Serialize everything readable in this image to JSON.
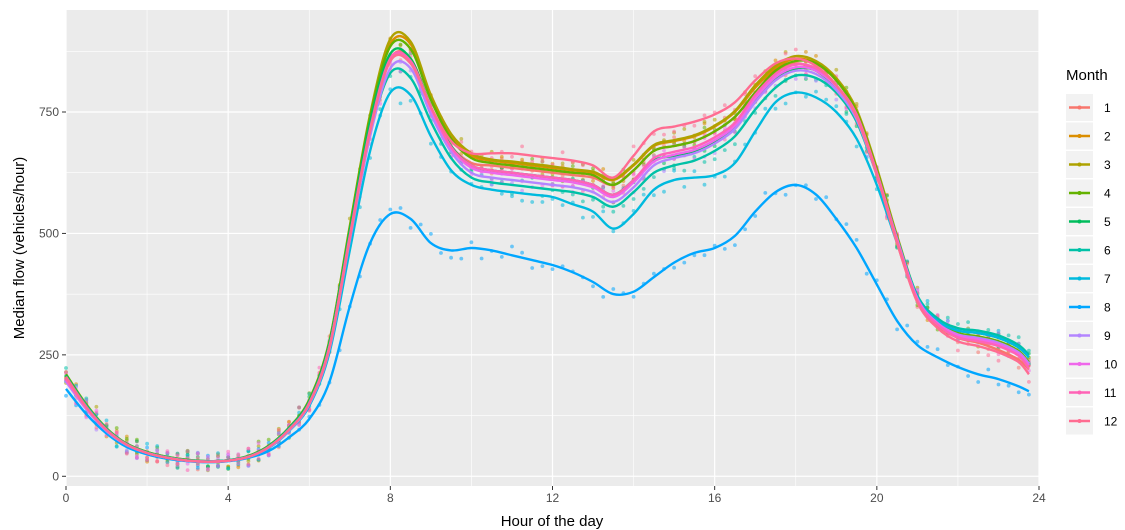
{
  "chart_data": {
    "type": "line",
    "title": "",
    "xlabel": "Hour of the day",
    "ylabel": "Median flow (vehicles/hour)",
    "xlim": [
      0,
      24
    ],
    "ylim": [
      -20,
      960
    ],
    "x_ticks": [
      0,
      4,
      8,
      12,
      16,
      20,
      24
    ],
    "y_ticks": [
      0,
      250,
      500,
      750
    ],
    "grid": true,
    "legend_title": "Month",
    "legend_position": "right",
    "x": [
      0,
      0.5,
      1,
      1.5,
      2,
      2.5,
      3,
      3.5,
      4,
      4.5,
      5,
      5.5,
      6,
      6.5,
      7,
      7.5,
      8,
      8.5,
      9,
      9.5,
      10,
      10.5,
      11,
      11.5,
      12,
      12.5,
      13,
      13.5,
      14,
      14.5,
      15,
      15.5,
      16,
      16.5,
      17,
      17.5,
      18,
      18.5,
      19,
      19.5,
      20,
      20.5,
      21,
      21.5,
      22,
      22.5,
      23,
      23.5,
      23.75
    ],
    "series": [
      {
        "name": "1",
        "color": "#F8766D",
        "values": [
          200,
          140,
          95,
          65,
          48,
          38,
          32,
          30,
          32,
          40,
          60,
          95,
          150,
          270,
          500,
          720,
          860,
          860,
          760,
          680,
          645,
          640,
          635,
          630,
          625,
          620,
          615,
          600,
          630,
          670,
          680,
          690,
          710,
          740,
          790,
          830,
          850,
          835,
          800,
          740,
          620,
          480,
          360,
          310,
          285,
          275,
          260,
          240,
          220
        ]
      },
      {
        "name": "2",
        "color": "#DB8E00",
        "values": [
          205,
          145,
          97,
          66,
          49,
          39,
          33,
          31,
          33,
          41,
          62,
          98,
          155,
          275,
          510,
          740,
          890,
          890,
          780,
          700,
          660,
          650,
          645,
          640,
          635,
          630,
          625,
          610,
          640,
          680,
          690,
          700,
          720,
          750,
          800,
          840,
          860,
          850,
          815,
          750,
          630,
          490,
          365,
          312,
          288,
          280,
          270,
          250,
          225
        ]
      },
      {
        "name": "3",
        "color": "#AEA200",
        "values": [
          210,
          148,
          99,
          67,
          50,
          40,
          34,
          31,
          33,
          42,
          63,
          100,
          158,
          280,
          515,
          745,
          900,
          895,
          785,
          705,
          665,
          652,
          648,
          643,
          638,
          632,
          627,
          612,
          642,
          682,
          692,
          702,
          722,
          752,
          805,
          845,
          865,
          855,
          820,
          755,
          635,
          495,
          370,
          315,
          290,
          282,
          272,
          252,
          228
        ]
      },
      {
        "name": "4",
        "color": "#64B200",
        "values": [
          210,
          147,
          98,
          67,
          50,
          40,
          34,
          31,
          33,
          42,
          63,
          100,
          157,
          278,
          512,
          740,
          885,
          880,
          775,
          695,
          655,
          645,
          640,
          635,
          630,
          625,
          620,
          600,
          630,
          670,
          680,
          690,
          710,
          740,
          790,
          835,
          855,
          850,
          815,
          750,
          630,
          490,
          368,
          318,
          295,
          288,
          278,
          258,
          235
        ]
      },
      {
        "name": "5",
        "color": "#00BD5C",
        "values": [
          208,
          146,
          98,
          66,
          49,
          39,
          33,
          31,
          33,
          41,
          62,
          99,
          155,
          275,
          505,
          730,
          870,
          860,
          760,
          680,
          640,
          630,
          625,
          620,
          615,
          610,
          600,
          580,
          610,
          650,
          660,
          670,
          690,
          720,
          775,
          820,
          840,
          835,
          800,
          740,
          625,
          490,
          370,
          320,
          300,
          295,
          285,
          265,
          245
        ]
      },
      {
        "name": "6",
        "color": "#00C1A7",
        "values": [
          205,
          145,
          97,
          66,
          49,
          39,
          33,
          31,
          33,
          41,
          61,
          98,
          152,
          268,
          490,
          705,
          830,
          820,
          730,
          655,
          615,
          605,
          600,
          595,
          590,
          585,
          575,
          555,
          585,
          625,
          640,
          650,
          670,
          700,
          755,
          800,
          825,
          820,
          790,
          730,
          620,
          490,
          372,
          325,
          305,
          300,
          290,
          270,
          250
        ]
      },
      {
        "name": "7",
        "color": "#00BADE",
        "values": [
          200,
          143,
          96,
          65,
          48,
          38,
          32,
          30,
          32,
          40,
          58,
          93,
          145,
          255,
          465,
          670,
          790,
          785,
          700,
          630,
          600,
          590,
          585,
          580,
          575,
          560,
          545,
          510,
          540,
          590,
          610,
          615,
          620,
          645,
          710,
          770,
          790,
          780,
          750,
          695,
          600,
          480,
          368,
          320,
          300,
          295,
          285,
          265,
          245
        ]
      },
      {
        "name": "8",
        "color": "#00A6FF",
        "values": [
          180,
          128,
          88,
          60,
          45,
          36,
          31,
          29,
          31,
          38,
          52,
          80,
          118,
          195,
          350,
          480,
          540,
          530,
          480,
          465,
          470,
          465,
          455,
          445,
          435,
          420,
          400,
          375,
          380,
          410,
          440,
          460,
          470,
          495,
          545,
          585,
          600,
          580,
          530,
          470,
          395,
          320,
          270,
          245,
          225,
          210,
          200,
          185,
          175
        ]
      },
      {
        "name": "9",
        "color": "#B385FF",
        "values": [
          195,
          138,
          93,
          64,
          48,
          38,
          32,
          30,
          32,
          40,
          59,
          94,
          148,
          262,
          485,
          700,
          840,
          840,
          745,
          668,
          625,
          615,
          610,
          605,
          600,
          595,
          585,
          565,
          595,
          640,
          655,
          665,
          685,
          715,
          770,
          815,
          835,
          828,
          795,
          735,
          620,
          485,
          365,
          315,
          292,
          285,
          275,
          255,
          232
        ]
      },
      {
        "name": "10",
        "color": "#EF67EB",
        "values": [
          198,
          140,
          95,
          65,
          48,
          38,
          32,
          30,
          32,
          40,
          60,
          96,
          150,
          267,
          492,
          712,
          855,
          852,
          755,
          675,
          635,
          625,
          620,
          615,
          610,
          605,
          595,
          575,
          605,
          648,
          662,
          672,
          692,
          722,
          778,
          822,
          842,
          835,
          802,
          742,
          625,
          488,
          366,
          315,
          290,
          282,
          272,
          252,
          228
        ]
      },
      {
        "name": "11",
        "color": "#FF63B6",
        "values": [
          200,
          141,
          95,
          65,
          48,
          38,
          32,
          30,
          32,
          40,
          60,
          96,
          151,
          268,
          495,
          715,
          860,
          855,
          760,
          678,
          640,
          630,
          625,
          620,
          615,
          610,
          600,
          580,
          610,
          655,
          668,
          678,
          698,
          728,
          785,
          828,
          848,
          840,
          805,
          745,
          625,
          485,
          362,
          312,
          286,
          278,
          268,
          248,
          222
        ]
      },
      {
        "name": "12",
        "color": "#FF6C91",
        "values": [
          205,
          143,
          96,
          65,
          48,
          38,
          32,
          30,
          32,
          40,
          60,
          96,
          150,
          265,
          490,
          710,
          855,
          850,
          760,
          690,
          665,
          665,
          665,
          660,
          655,
          650,
          640,
          615,
          660,
          710,
          720,
          730,
          745,
          770,
          815,
          850,
          860,
          845,
          805,
          740,
          620,
          480,
          358,
          305,
          278,
          268,
          255,
          235,
          210
        ]
      }
    ]
  }
}
